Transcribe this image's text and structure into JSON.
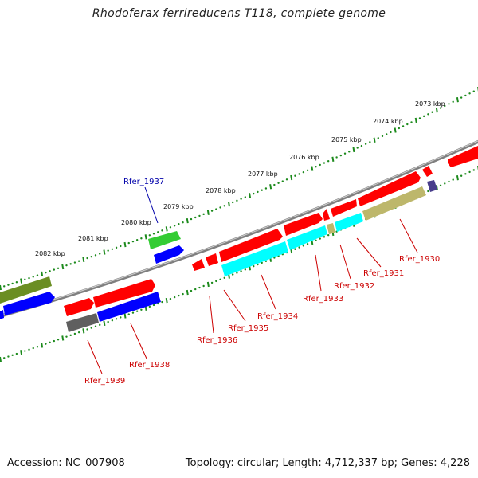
{
  "title": "Rhodoferax ferrireducens T118, complete genome",
  "footer": {
    "accession": "Accession: NC_007908",
    "summary": "Topology: circular; Length: 4,712,337 bp; Genes: 4,228"
  },
  "colors": {
    "backbone": "#7f7f7f",
    "ticks": "#1c8a1c",
    "forward_gene": "#ff0000",
    "cyan_gene": "#00ffff",
    "reverse_gene": "#0000ff",
    "khaki_gene": "#bdb76b",
    "green_gene": "#33cc33",
    "olive_gene": "#6b8e23",
    "dark_gene": "#5f5f5f",
    "slate_gene": "#483d8b",
    "red_label": "#cc0000",
    "blue_label": "#0000aa"
  },
  "kbp_labels": [
    "2073 kbp",
    "2074 kbp",
    "2075 kbp",
    "2076 kbp",
    "2077 kbp",
    "2078 kbp",
    "2079 kbp",
    "2080 kbp",
    "2081 kbp",
    "2082 kbp"
  ],
  "gene_labels": [
    {
      "name": "Rfer_1930",
      "color": "red"
    },
    {
      "name": "Rfer_1931",
      "color": "red"
    },
    {
      "name": "Rfer_1932",
      "color": "red"
    },
    {
      "name": "Rfer_1933",
      "color": "red"
    },
    {
      "name": "Rfer_1934",
      "color": "red"
    },
    {
      "name": "Rfer_1935",
      "color": "red"
    },
    {
      "name": "Rfer_1936",
      "color": "red"
    },
    {
      "name": "Rfer_1937",
      "color": "blue"
    },
    {
      "name": "Rfer_1938",
      "color": "red"
    },
    {
      "name": "Rfer_1939",
      "color": "red"
    }
  ]
}
